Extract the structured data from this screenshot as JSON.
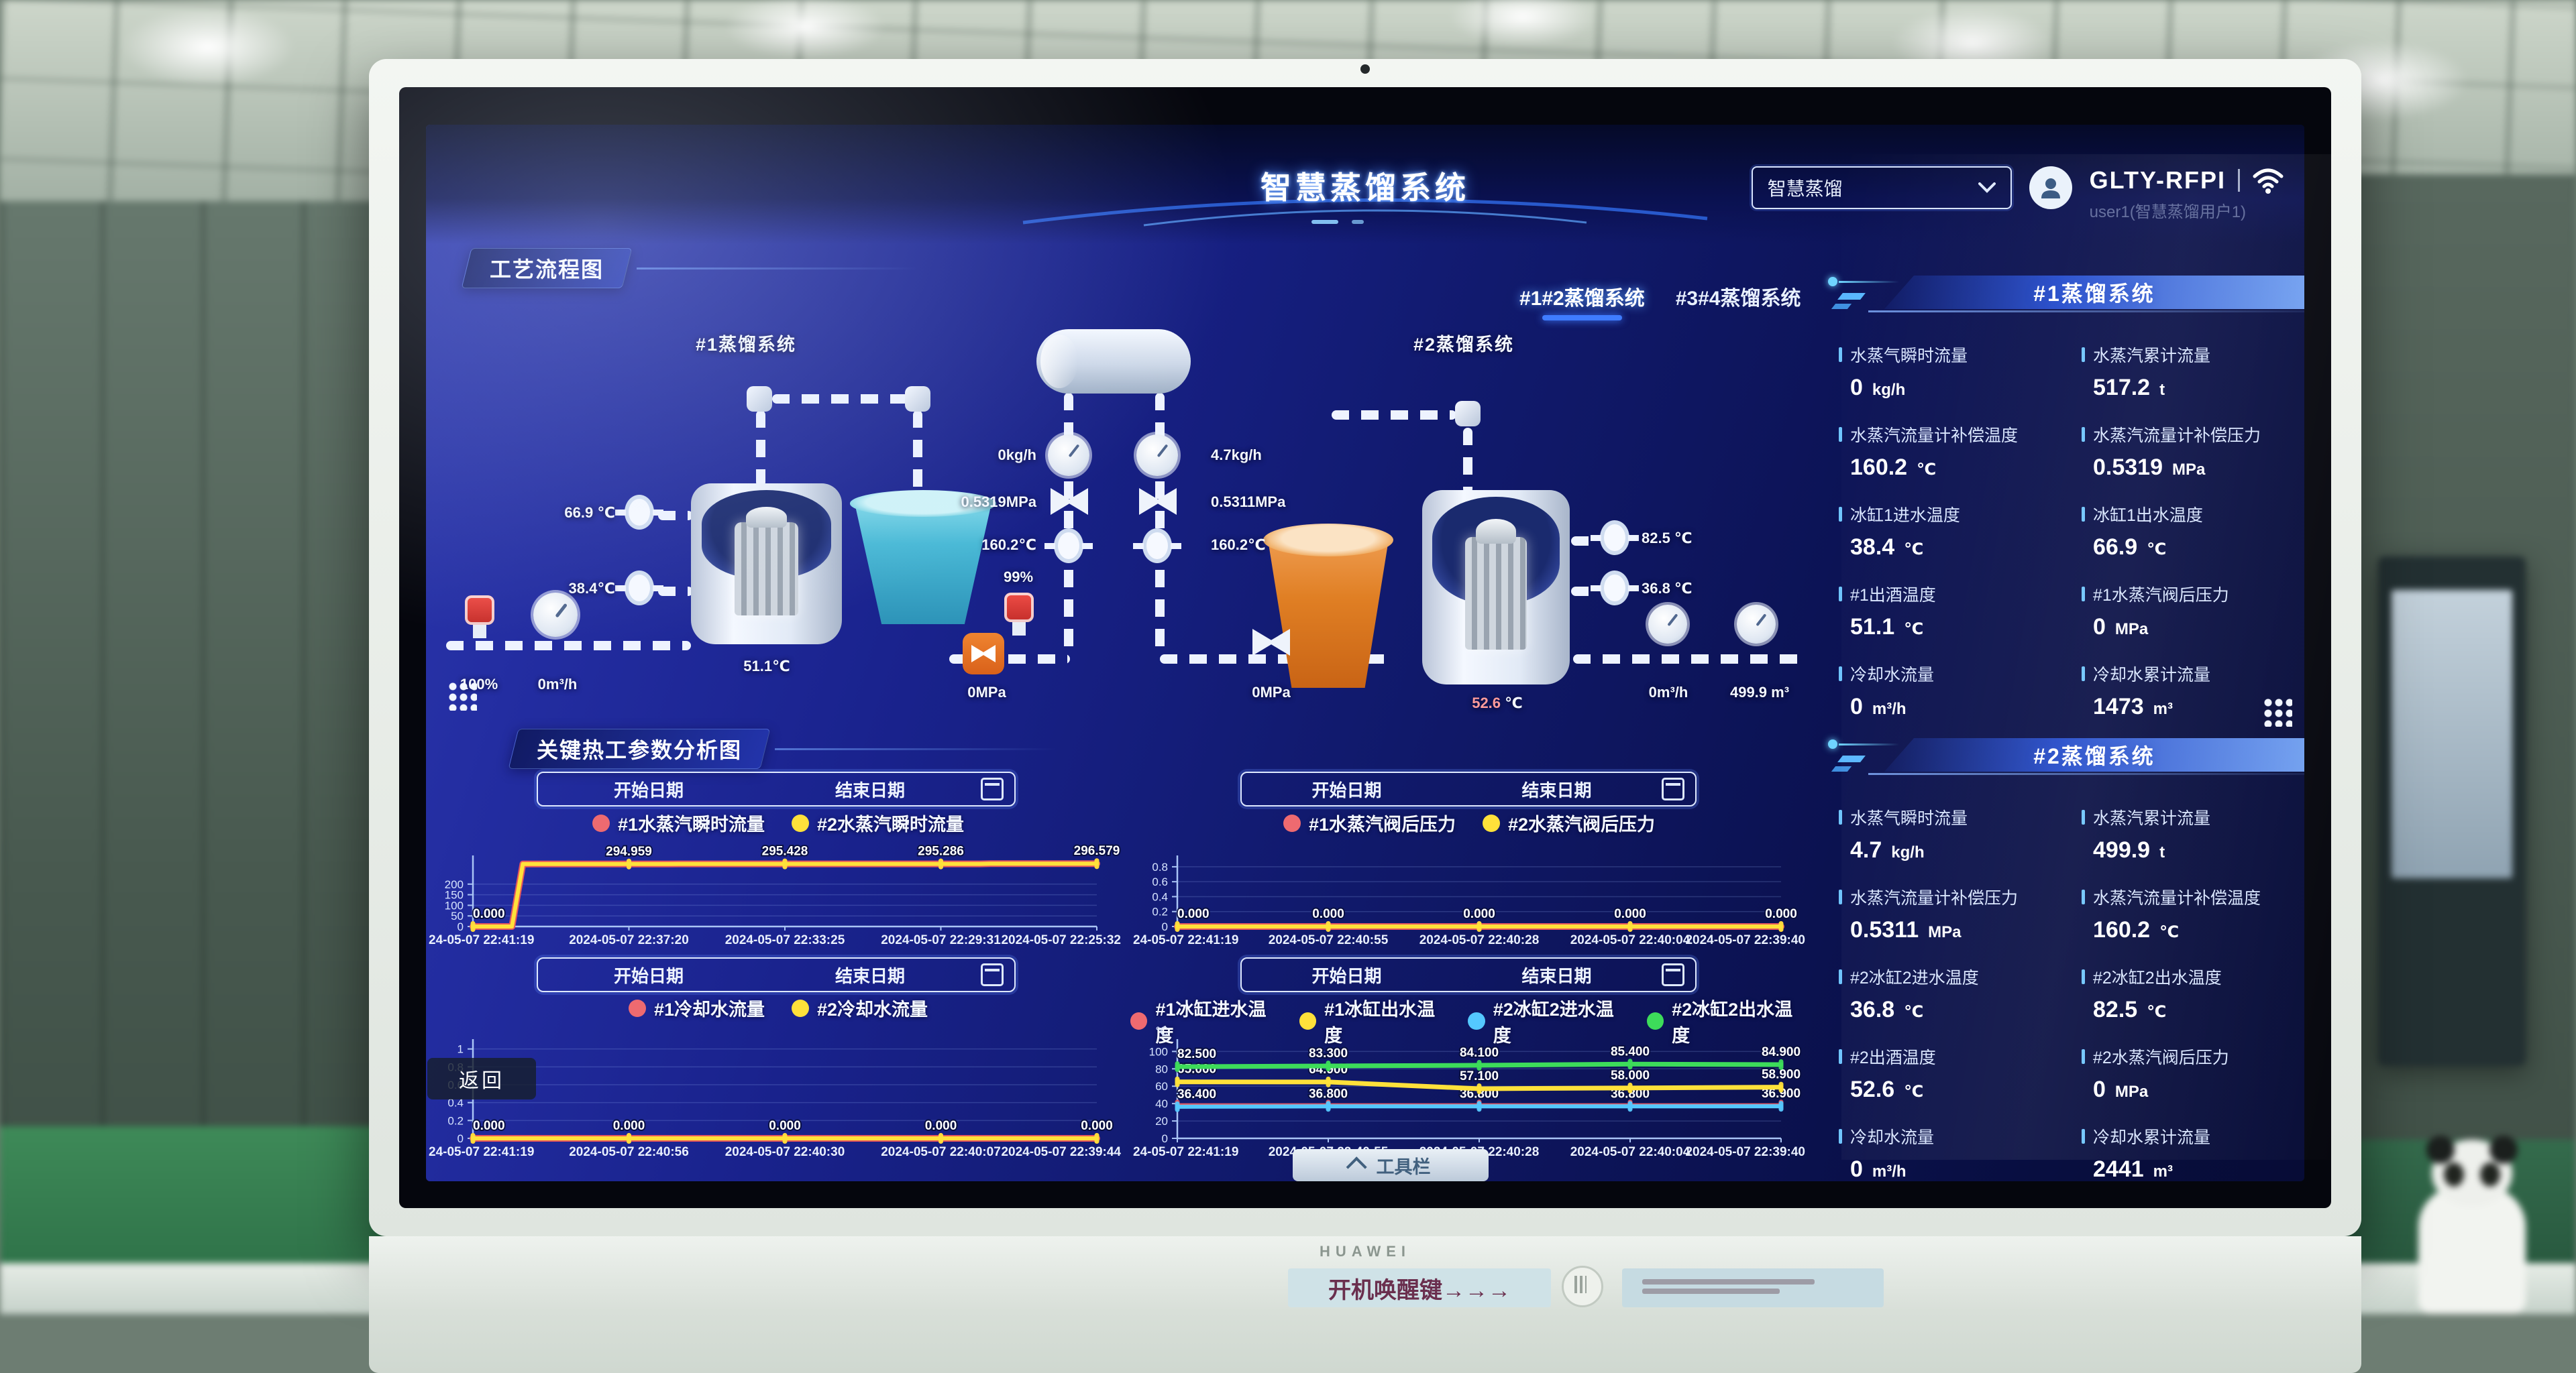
{
  "header": {
    "title": "智慧蒸馏系统",
    "system_select": {
      "value": "智慧蒸馏"
    },
    "device_id": "GLTY-RFPI",
    "user": "user1(智慧蒸馏用户1)"
  },
  "process_panel": {
    "title": "工艺流程图",
    "tabs": [
      {
        "label": "#1#2蒸馏系统",
        "active": true
      },
      {
        "label": "#3#4蒸馏系统",
        "active": false
      }
    ],
    "diagram": {
      "system1_label": "#1蒸馏系统",
      "system2_label": "#2蒸馏系统",
      "sensors": {
        "s1_feed_valve_pct": "100%",
        "s1_feed_flow": "0m³/h",
        "s1_outlet_temp": "66.9 ℃",
        "s1_inlet_temp": "38.4℃",
        "s1_pot_temp": "51.1℃",
        "s1_steam_flow": "0kg/h",
        "s1_steam_pressure": "0.5319MPa",
        "s1_steam_temp": "160.2℃",
        "s1_valve_open": "99%",
        "s1_after_valve_pressure": "0MPa",
        "s2_steam_flow": "4.7kg/h",
        "s2_steam_pressure": "0.5311MPa",
        "s2_steam_temp": "160.2℃",
        "s2_after_valve_pressure": "0MPa",
        "s2_pot_temp_value": "52.6",
        "s2_pot_temp_unit": "℃",
        "s2_outlet_temp": "82.5 ℃",
        "s2_inlet_temp": "36.8 ℃",
        "s2_cooling_flow": "0m³/h",
        "s2_cooling_total": "499.9 m³"
      }
    }
  },
  "analysis_panel": {
    "title": "关键热工参数分析图",
    "date_picker": {
      "start": "开始日期",
      "end": "结束日期"
    },
    "back_button": "返回"
  },
  "stats_panel_1": {
    "title": "#1蒸馏系统",
    "rows": [
      {
        "label": "水蒸气瞬时流量",
        "value": "0",
        "unit": "kg/h"
      },
      {
        "label": "水蒸汽累计流量",
        "value": "517.2",
        "unit": "t"
      },
      {
        "label": "水蒸汽流量计补偿温度",
        "value": "160.2",
        "unit": "℃"
      },
      {
        "label": "水蒸汽流量计补偿压力",
        "value": "0.5319",
        "unit": "MPa"
      },
      {
        "label": "冰缸1进水温度",
        "value": "38.4",
        "unit": "℃"
      },
      {
        "label": "冰缸1出水温度",
        "value": "66.9",
        "unit": "℃"
      },
      {
        "label": "#1出酒温度",
        "value": "51.1",
        "unit": "℃"
      },
      {
        "label": "#1水蒸汽阀后压力",
        "value": "0",
        "unit": "MPa"
      },
      {
        "label": "冷却水流量",
        "value": "0",
        "unit": "m³/h"
      },
      {
        "label": "冷却水累计流量",
        "value": "1473",
        "unit": "m³"
      }
    ]
  },
  "stats_panel_2": {
    "title": "#2蒸馏系统",
    "rows": [
      {
        "label": "水蒸气瞬时流量",
        "value": "4.7",
        "unit": "kg/h"
      },
      {
        "label": "水蒸汽累计流量",
        "value": "499.9",
        "unit": "t"
      },
      {
        "label": "水蒸汽流量计补偿压力",
        "value": "0.5311",
        "unit": "MPa"
      },
      {
        "label": "水蒸汽流量计补偿温度",
        "value": "160.2",
        "unit": "℃"
      },
      {
        "label": "#2冰缸2进水温度",
        "value": "36.8",
        "unit": "℃"
      },
      {
        "label": "#2冰缸2出水温度",
        "value": "82.5",
        "unit": "℃"
      },
      {
        "label": "#2出酒温度",
        "value": "52.6",
        "unit": "℃"
      },
      {
        "label": "#2水蒸汽阀后压力",
        "value": "0",
        "unit": "MPa"
      },
      {
        "label": "冷却水流量",
        "value": "0",
        "unit": "m³/h"
      },
      {
        "label": "冷却水累计流量",
        "value": "2441",
        "unit": "m³"
      }
    ]
  },
  "toolbar_button": "工具栏",
  "bezel": {
    "brand": "HUAWEI",
    "sticker": "开机唤醒键→→→"
  },
  "colors": {
    "accent_blue": "#3f7cff",
    "accent_cyan": "#6fd4ff",
    "series_red": "#e5565e",
    "series_yellow": "#ffe13a",
    "series_blue": "#54c8ff",
    "series_green": "#3ddc5a"
  },
  "chart_data": [
    {
      "id": "c1",
      "type": "line",
      "step": true,
      "legend": [
        {
          "name": "#1水蒸汽瞬时流量",
          "color": "#ee6a70"
        },
        {
          "name": "#2水蒸汽瞬时流量",
          "color": "#ffe13a"
        }
      ],
      "x": [
        "24-05-07 22:41:19",
        "2024-05-07 22:37:20",
        "2024-05-07 22:33:25",
        "2024-05-07 22:29:31",
        "2024-05-07 22:25:32"
      ],
      "ylim": [
        0,
        310
      ],
      "yticks": [
        0,
        50,
        100,
        150,
        200
      ],
      "series": [
        {
          "name": "#1水蒸汽瞬时流量",
          "color": "#e5565e",
          "width": 10,
          "values": [
            0,
            294.959,
            295.428,
            295.286,
            296.579
          ]
        },
        {
          "name": "#2水蒸汽瞬时流量",
          "color": "#ffe13a",
          "width": 6,
          "values": [
            0,
            294.959,
            295.428,
            295.286,
            296.579
          ],
          "labels": [
            "0.000",
            "294.959",
            "295.428",
            "295.286",
            "296.579"
          ]
        }
      ]
    },
    {
      "id": "c2",
      "type": "line",
      "legend": [
        {
          "name": "#1水蒸汽阀后压力",
          "color": "#ee6a70"
        },
        {
          "name": "#2水蒸汽阀后压力",
          "color": "#ffe13a"
        }
      ],
      "x": [
        "24-05-07 22:41:19",
        "2024-05-07 22:40:55",
        "2024-05-07 22:40:28",
        "2024-05-07 22:40:04",
        "2024-05-07 22:39:40"
      ],
      "ylim": [
        0,
        0.88
      ],
      "yticks": [
        0,
        0.2,
        0.4,
        0.6,
        0.8
      ],
      "series": [
        {
          "name": "#1水蒸汽阀后压力",
          "color": "#e5565e",
          "width": 10,
          "values": [
            0,
            0,
            0,
            0,
            0
          ]
        },
        {
          "name": "#2水蒸汽阀后压力",
          "color": "#ffe13a",
          "width": 6,
          "values": [
            0,
            0,
            0,
            0,
            0
          ],
          "labels": [
            "0.000",
            "0.000",
            "0.000",
            "0.000",
            "0.000"
          ]
        }
      ]
    },
    {
      "id": "c3",
      "type": "line",
      "legend": [
        {
          "name": "#1冷却水流量",
          "color": "#ee6a70"
        },
        {
          "name": "#2冷却水流量",
          "color": "#ffe13a"
        }
      ],
      "x": [
        "24-05-07 22:41:19",
        "2024-05-07 22:40:56",
        "2024-05-07 22:40:30",
        "2024-05-07 22:40:07",
        "2024-05-07 22:39:44"
      ],
      "ylim": [
        0,
        1.05
      ],
      "yticks": [
        0,
        0.2,
        0.4,
        0.6,
        0.8,
        1
      ],
      "series": [
        {
          "name": "#1冷却水流量",
          "color": "#e5565e",
          "width": 10,
          "values": [
            0,
            0,
            0,
            0,
            0
          ]
        },
        {
          "name": "#2冷却水流量",
          "color": "#ffe13a",
          "width": 6,
          "values": [
            0,
            0,
            0,
            0,
            0
          ],
          "labels": [
            "0.000",
            "0.000",
            "0.000",
            "0.000",
            "0.000"
          ]
        }
      ]
    },
    {
      "id": "c4",
      "type": "line",
      "ylabel": "℃",
      "legend": [
        {
          "name": "#1冰缸进水温度",
          "color": "#ee6a70"
        },
        {
          "name": "#1冰缸出水温度",
          "color": "#ffe13a"
        },
        {
          "name": "#2冰缸2进水温度",
          "color": "#54c8ff"
        },
        {
          "name": "#2冰缸2出水温度",
          "color": "#3ddc5a"
        }
      ],
      "x": [
        "24-05-07 22:41:19",
        "2024-05-07 22:40:55",
        "2024-05-07 22:40:28",
        "2024-05-07 22:40:04",
        "2024-05-07 22:39:40"
      ],
      "ylim": [
        0,
        108
      ],
      "yticks": [
        0,
        20,
        40,
        60,
        80,
        100
      ],
      "series": [
        {
          "name": "#1冰缸进水温度",
          "color": "#e5565e",
          "width": 5,
          "values": [
            38.4,
            38.4,
            38.4,
            38.4,
            38.4
          ]
        },
        {
          "name": "#2冰缸2进水温度",
          "color": "#54c8ff",
          "width": 6,
          "values": [
            36.4,
            36.8,
            36.8,
            36.8,
            36.9
          ],
          "labels": [
            "36.400",
            "36.800",
            "36.800",
            "36.800",
            "36.900"
          ]
        },
        {
          "name": "#1冰缸出水温度",
          "color": "#ffe13a",
          "width": 7,
          "values": [
            65.0,
            64.9,
            57.1,
            58.0,
            58.9
          ],
          "labels": [
            "65.000",
            "64.900",
            "57.100",
            "58.000",
            "58.900"
          ]
        },
        {
          "name": "#2冰缸2出水温度",
          "color": "#3ddc5a",
          "width": 7,
          "values": [
            82.5,
            83.3,
            84.1,
            85.4,
            84.9
          ],
          "labels": [
            "82.500",
            "83.300",
            "84.100",
            "85.400",
            "84.900"
          ]
        }
      ]
    }
  ]
}
